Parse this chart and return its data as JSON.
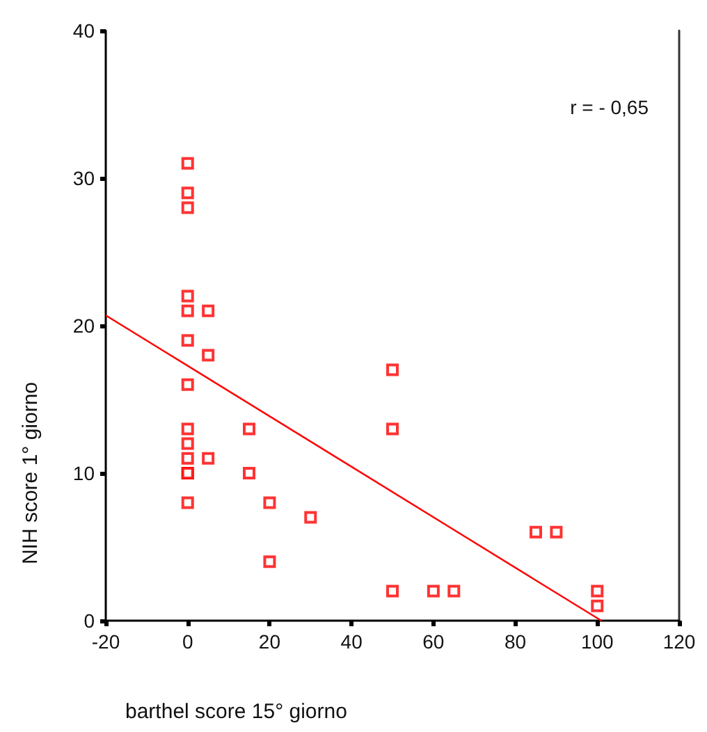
{
  "chart_data": {
    "type": "scatter",
    "xlabel": "barthel score 15° giorno",
    "ylabel": "NIH score 1° giorno",
    "annotations": [
      "r = - 0,65"
    ],
    "xlim": [
      -20,
      120
    ],
    "xticks": [
      -20,
      0,
      20,
      40,
      60,
      80,
      100,
      120
    ],
    "ylim": [
      0,
      40
    ],
    "yticks": [
      0,
      10,
      20,
      30,
      40
    ],
    "grid": false,
    "marker": "square",
    "series": [
      {
        "color": "#ff0000",
        "x": [
          0,
          0,
          0,
          0,
          0,
          0,
          0,
          0,
          0,
          0,
          0,
          0,
          0,
          5,
          5,
          5,
          15,
          15,
          20,
          20,
          30,
          50,
          50,
          50,
          60,
          65,
          85,
          90,
          100,
          100
        ],
        "values": [
          31,
          29,
          28,
          22,
          21,
          19,
          16,
          13,
          12,
          11,
          10,
          10,
          8,
          21,
          18,
          11,
          13,
          10,
          8,
          4,
          7,
          17,
          13,
          2,
          2,
          2,
          6,
          6,
          2,
          1
        ]
      },
      {
        "type": "line",
        "marker": "none",
        "color": "#ff0000",
        "x": [
          -20,
          101
        ],
        "values": [
          20.7,
          0
        ]
      }
    ]
  }
}
